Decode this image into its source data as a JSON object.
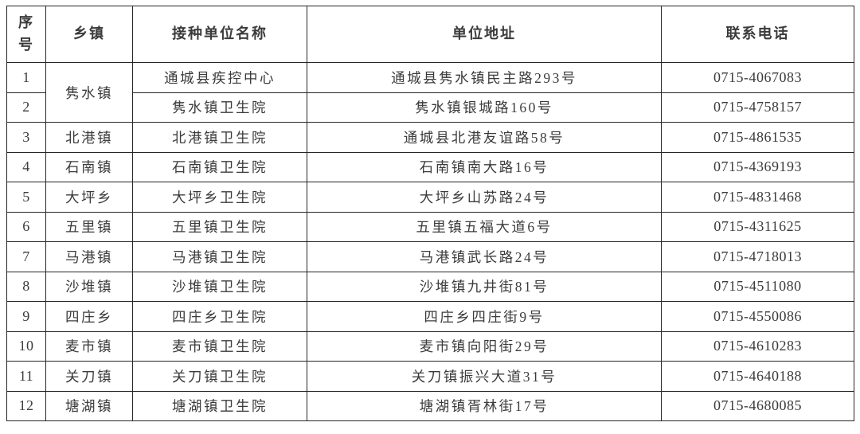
{
  "table": {
    "title_semantic": "vaccination-units-directory",
    "columns": [
      {
        "key": "no",
        "label": "序号"
      },
      {
        "key": "township",
        "label": "乡镇"
      },
      {
        "key": "unit",
        "label": "接种单位名称"
      },
      {
        "key": "address",
        "label": "单位地址"
      },
      {
        "key": "phone",
        "label": "联系电话"
      }
    ],
    "rows": [
      {
        "no": "1",
        "township": "隽水镇",
        "township_rowspan": 2,
        "unit": "通城县疾控中心",
        "address": "通城县隽水镇民主路293号",
        "phone": "0715-4067083"
      },
      {
        "no": "2",
        "unit": "隽水镇卫生院",
        "address": "隽水镇银城路160号",
        "phone": "0715-4758157"
      },
      {
        "no": "3",
        "township": "北港镇",
        "unit": "北港镇卫生院",
        "address": "通城县北港友谊路58号",
        "phone": "0715-4861535"
      },
      {
        "no": "4",
        "township": "石南镇",
        "unit": "石南镇卫生院",
        "address": "石南镇南大路16号",
        "phone": "0715-4369193"
      },
      {
        "no": "5",
        "township": "大坪乡",
        "unit": "大坪乡卫生院",
        "address": "大坪乡山苏路24号",
        "phone": "0715-4831468"
      },
      {
        "no": "6",
        "township": "五里镇",
        "unit": "五里镇卫生院",
        "address": "五里镇五福大道6号",
        "phone": "0715-4311625"
      },
      {
        "no": "7",
        "township": "马港镇",
        "unit": "马港镇卫生院",
        "address": "马港镇武长路24号",
        "phone": "0715-4718013"
      },
      {
        "no": "8",
        "township": "沙堆镇",
        "unit": "沙堆镇卫生院",
        "address": "沙堆镇九井街81号",
        "phone": "0715-4511080"
      },
      {
        "no": "9",
        "township": "四庄乡",
        "unit": "四庄乡卫生院",
        "address": "四庄乡四庄街9号",
        "phone": "0715-4550086"
      },
      {
        "no": "10",
        "township": "麦市镇",
        "unit": "麦市镇卫生院",
        "address": "麦市镇向阳街29号",
        "phone": "0715-4610283"
      },
      {
        "no": "11",
        "township": "关刀镇",
        "unit": "关刀镇卫生院",
        "address": "关刀镇振兴大道31号",
        "phone": "0715-4640188"
      },
      {
        "no": "12",
        "township": "塘湖镇",
        "unit": "塘湖镇卫生院",
        "address": "塘湖镇胥林街17号",
        "phone": "0715-4680085"
      }
    ]
  },
  "colors": {
    "text": "#3b3b3b",
    "border": "#262626",
    "background": "#ffffff"
  }
}
